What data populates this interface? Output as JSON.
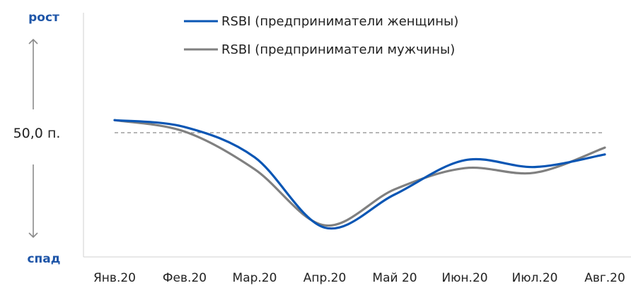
{
  "chart_data": {
    "type": "line",
    "categories": [
      "Янв.20",
      "Фев.20",
      "Мар.20",
      "Апр.20",
      "Май 20",
      "Июн.20",
      "Июл.20",
      "Авг.20"
    ],
    "series": [
      {
        "name": "RSBI (предприниматели женщины)",
        "color": "#0a56b4",
        "values": [
          52.2,
          51.0,
          45.7,
          33.4,
          39.2,
          45.2,
          44.0,
          46.2
        ]
      },
      {
        "name": "RSBI (предприниматели мужчины)",
        "color": "#808080",
        "values": [
          52.2,
          50.2,
          43.6,
          33.8,
          40.1,
          43.8,
          43.0,
          47.4
        ]
      }
    ],
    "reference_line": {
      "value": 50.0,
      "label": "50,0 п."
    },
    "side_labels": {
      "top": "рост",
      "bottom": "спад"
    },
    "side_label_color": "#1f56a8",
    "grid": false,
    "legend_position": "top-center"
  }
}
